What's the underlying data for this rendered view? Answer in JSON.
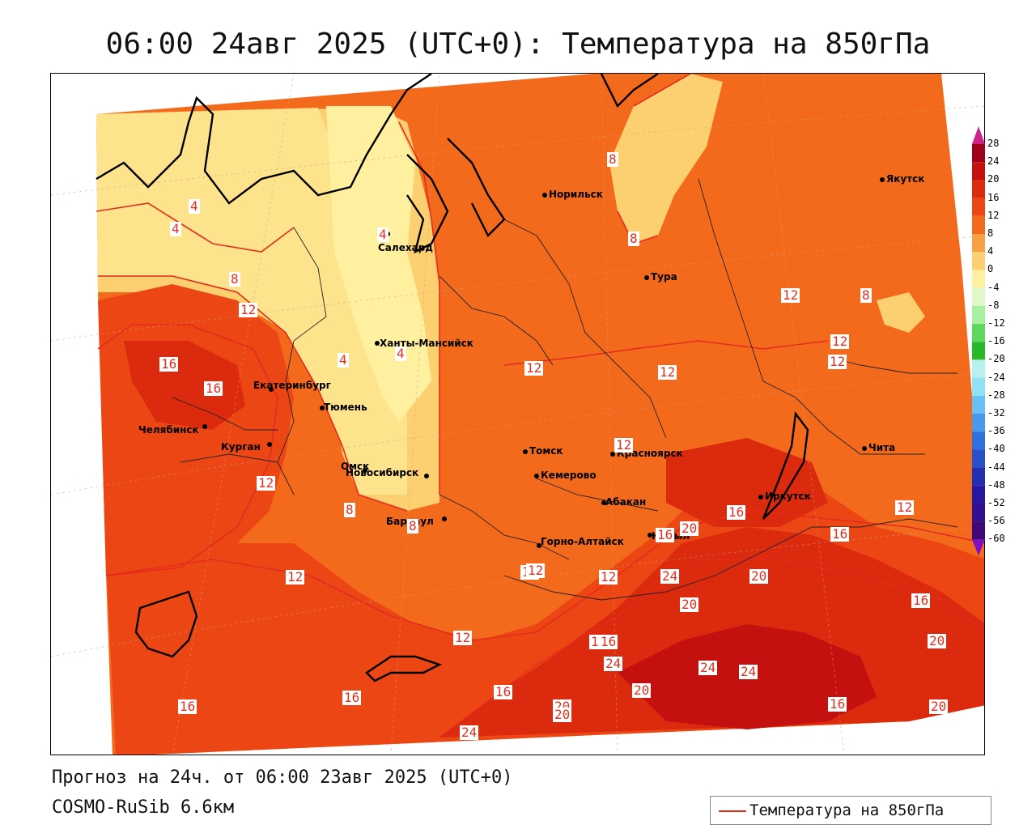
{
  "title": "06:00 24авг 2025 (UTC+0): Температура на 850гПа",
  "forecast_line": "Прогноз на 24ч. от 06:00 23авг 2025 (UTC+0)",
  "model_line": "COSMO-RuSib 6.6км",
  "legend": {
    "label": "Температура на 850гПа",
    "line_color": "#e52a1e"
  },
  "colorbar": {
    "ticks": [
      "28",
      "24",
      "20",
      "16",
      "12",
      "8",
      "4",
      "0",
      "-4",
      "-8",
      "-12",
      "-16",
      "-20",
      "-24",
      "-28",
      "-32",
      "-36",
      "-40",
      "-44",
      "-48",
      "-52",
      "-56",
      "-60"
    ],
    "colors": [
      "#a0001a",
      "#c4100e",
      "#dc2a0e",
      "#ec4614",
      "#f46a1c",
      "#f8a042",
      "#fcd070",
      "#fff0a0",
      "#e0f8c8",
      "#a8f0a0",
      "#60d860",
      "#28b828",
      "#b8f0f0",
      "#90e0f8",
      "#68c0f4",
      "#4898ec",
      "#3070dc",
      "#2850c8",
      "#2030b0",
      "#2818a0",
      "#301090",
      "#400878"
    ]
  },
  "cities": [
    {
      "name": "Норильск"
    },
    {
      "name": "Якутск"
    },
    {
      "name": "Салехард"
    },
    {
      "name": "Тура"
    },
    {
      "name": "Ханты-Мансийск"
    },
    {
      "name": "Екатеринбург"
    },
    {
      "name": "Тюмень"
    },
    {
      "name": "Челябинск"
    },
    {
      "name": "Курган"
    },
    {
      "name": "Омск"
    },
    {
      "name": "Томск"
    },
    {
      "name": "Красноярск"
    },
    {
      "name": "Новосибирск"
    },
    {
      "name": "Кемерово"
    },
    {
      "name": "Абакан"
    },
    {
      "name": "Барнаул"
    },
    {
      "name": "Горно-Алтайск"
    },
    {
      "name": "Кызыл"
    },
    {
      "name": "Иркутск"
    },
    {
      "name": "Чита"
    }
  ],
  "contour_labels": [
    "8",
    "8",
    "4",
    "4",
    "4",
    "8",
    "12",
    "16",
    "16",
    "12",
    "4",
    "4",
    "12",
    "12",
    "12",
    "12",
    "8",
    "12",
    "12",
    "8",
    "8",
    "12",
    "12",
    "12",
    "16",
    "16",
    "12",
    "16",
    "20",
    "16",
    "12",
    "24",
    "20",
    "20",
    "16",
    "16",
    "16",
    "20",
    "24",
    "24",
    "24",
    "20",
    "12",
    "16",
    "16",
    "20",
    "16",
    "20",
    "24",
    "20"
  ]
}
